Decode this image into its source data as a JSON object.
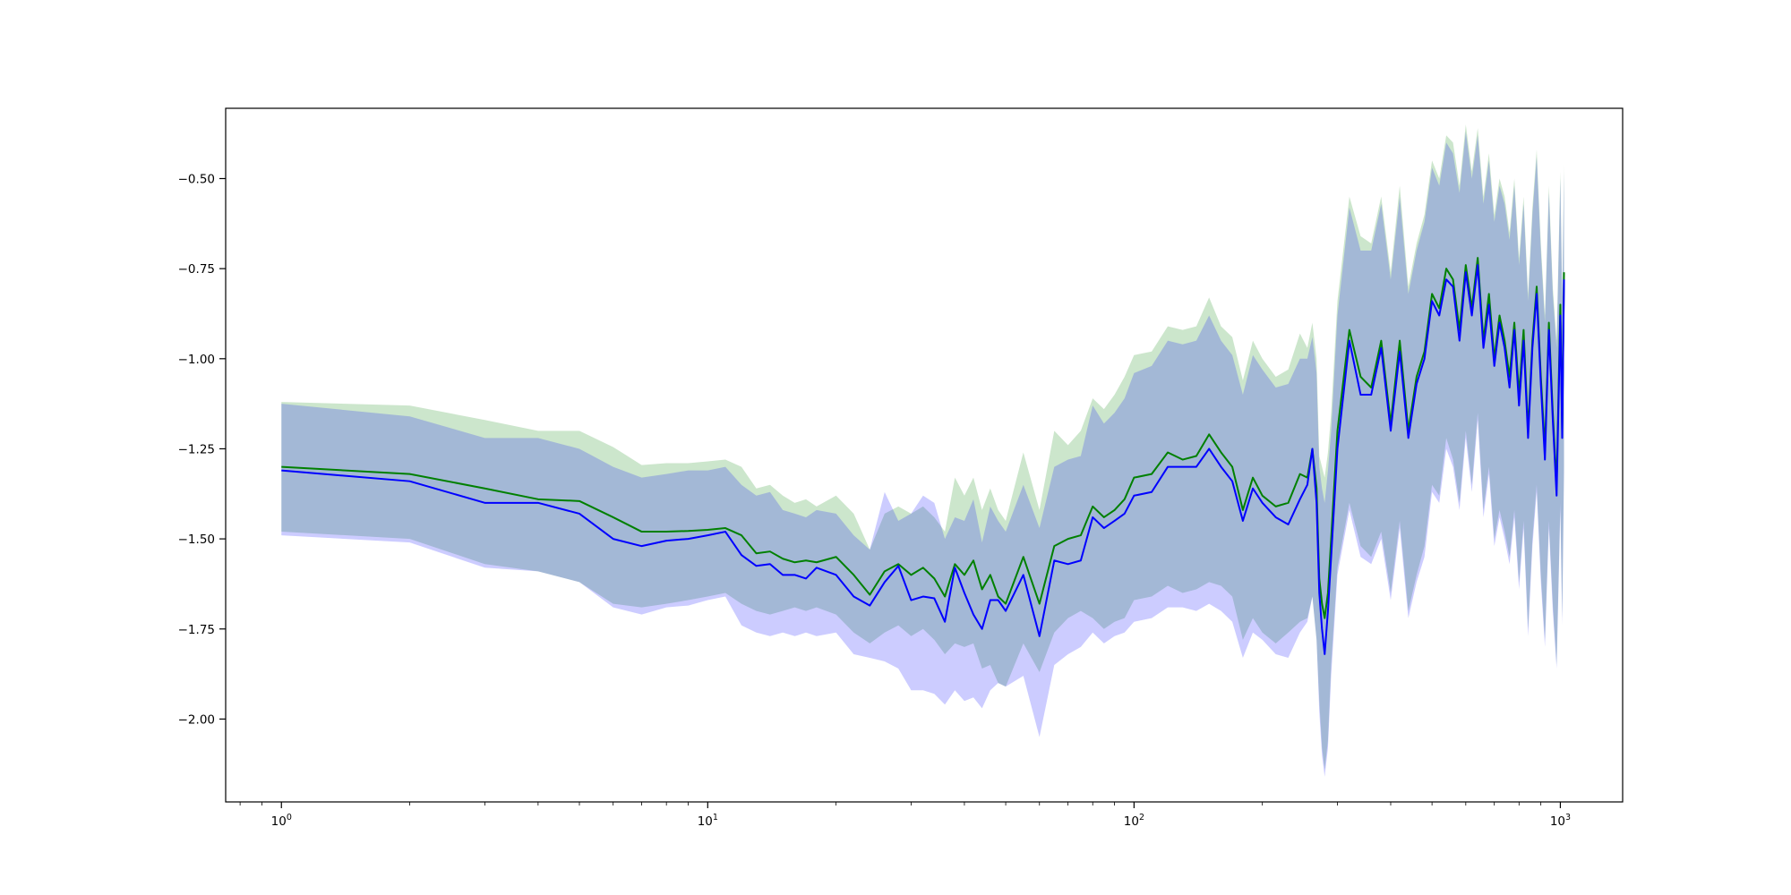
{
  "chart_data": {
    "type": "line",
    "title": "",
    "xlabel": "",
    "ylabel": "",
    "xscale": "log",
    "xlim": [
      0.74,
      1400
    ],
    "ylim": [
      -2.23,
      -0.305
    ],
    "grid": false,
    "legend": "none",
    "x_ticks": [
      {
        "value": 1,
        "base": "10",
        "exp": "0"
      },
      {
        "value": 10,
        "base": "10",
        "exp": "1"
      },
      {
        "value": 100,
        "base": "10",
        "exp": "2"
      },
      {
        "value": 1000,
        "base": "10",
        "exp": "3"
      }
    ],
    "y_ticks": [
      {
        "value": -0.5,
        "label": "−0.50"
      },
      {
        "value": -0.75,
        "label": "−0.75"
      },
      {
        "value": -1.0,
        "label": "−1.00"
      },
      {
        "value": -1.25,
        "label": "−1.25"
      },
      {
        "value": -1.5,
        "label": "−1.50"
      },
      {
        "value": -1.75,
        "label": "−1.75"
      },
      {
        "value": -2.0,
        "label": "−2.00"
      }
    ],
    "series": [
      {
        "color": "#008000",
        "band_color": "#008000",
        "band_opacity": 0.2,
        "x": [
          1,
          2,
          3,
          4,
          5,
          6,
          7,
          8,
          9,
          10,
          11,
          12,
          13,
          14,
          15,
          16,
          17,
          18,
          20,
          22,
          24,
          26,
          28,
          30,
          32,
          34,
          36,
          38,
          40,
          42,
          44,
          46,
          48,
          50,
          55,
          60,
          65,
          70,
          75,
          80,
          85,
          90,
          95,
          100,
          110,
          120,
          130,
          140,
          150,
          160,
          170,
          180,
          190,
          200,
          215,
          230,
          245,
          255,
          262,
          268,
          272,
          276,
          280,
          285,
          290,
          300,
          320,
          340,
          360,
          380,
          400,
          420,
          440,
          460,
          480,
          500,
          520,
          540,
          560,
          580,
          600,
          620,
          640,
          660,
          680,
          700,
          720,
          740,
          760,
          780,
          800,
          820,
          840,
          860,
          880,
          900,
          920,
          940,
          960,
          980,
          1000,
          1010,
          1020
        ],
        "mean": [
          -1.3,
          -1.32,
          -1.36,
          -1.39,
          -1.395,
          -1.44,
          -1.48,
          -1.48,
          -1.478,
          -1.475,
          -1.47,
          -1.49,
          -1.54,
          -1.535,
          -1.555,
          -1.565,
          -1.56,
          -1.565,
          -1.55,
          -1.6,
          -1.655,
          -1.59,
          -1.57,
          -1.6,
          -1.58,
          -1.61,
          -1.66,
          -1.57,
          -1.6,
          -1.56,
          -1.64,
          -1.6,
          -1.66,
          -1.68,
          -1.55,
          -1.68,
          -1.52,
          -1.5,
          -1.49,
          -1.41,
          -1.44,
          -1.42,
          -1.39,
          -1.33,
          -1.32,
          -1.26,
          -1.28,
          -1.27,
          -1.21,
          -1.26,
          -1.3,
          -1.42,
          -1.33,
          -1.38,
          -1.41,
          -1.4,
          -1.32,
          -1.33,
          -1.25,
          -1.36,
          -1.61,
          -1.68,
          -1.72,
          -1.65,
          -1.5,
          -1.2,
          -0.92,
          -1.05,
          -1.08,
          -0.95,
          -1.18,
          -0.95,
          -1.2,
          -1.05,
          -0.98,
          -0.82,
          -0.86,
          -0.75,
          -0.78,
          -0.92,
          -0.74,
          -0.86,
          -0.72,
          -0.95,
          -0.82,
          -1.0,
          -0.88,
          -0.95,
          -1.05,
          -0.9,
          -1.1,
          -0.92,
          -1.2,
          -0.95,
          -0.8,
          -1.05,
          -1.25,
          -0.9,
          -1.15,
          -1.35,
          -0.85,
          -1.2,
          -0.76
        ],
        "lower": [
          -1.48,
          -1.5,
          -1.57,
          -1.59,
          -1.62,
          -1.68,
          -1.69,
          -1.68,
          -1.67,
          -1.66,
          -1.65,
          -1.68,
          -1.7,
          -1.71,
          -1.7,
          -1.69,
          -1.7,
          -1.69,
          -1.71,
          -1.76,
          -1.79,
          -1.76,
          -1.74,
          -1.77,
          -1.75,
          -1.78,
          -1.82,
          -1.79,
          -1.8,
          -1.79,
          -1.86,
          -1.85,
          -1.9,
          -1.91,
          -1.79,
          -1.87,
          -1.76,
          -1.72,
          -1.7,
          -1.72,
          -1.75,
          -1.73,
          -1.72,
          -1.67,
          -1.66,
          -1.63,
          -1.65,
          -1.64,
          -1.62,
          -1.63,
          -1.66,
          -1.78,
          -1.72,
          -1.76,
          -1.79,
          -1.76,
          -1.73,
          -1.72,
          -1.66,
          -1.78,
          -1.95,
          -2.08,
          -2.14,
          -2.06,
          -1.85,
          -1.58,
          -1.4,
          -1.52,
          -1.55,
          -1.48,
          -1.65,
          -1.45,
          -1.7,
          -1.6,
          -1.52,
          -1.35,
          -1.38,
          -1.22,
          -1.28,
          -1.4,
          -1.2,
          -1.35,
          -1.15,
          -1.42,
          -1.3,
          -1.5,
          -1.42,
          -1.48,
          -1.55,
          -1.42,
          -1.62,
          -1.45,
          -1.75,
          -1.5,
          -1.35,
          -1.6,
          -1.78,
          -1.45,
          -1.68,
          -1.85,
          -1.4,
          -1.72,
          -1.3
        ],
        "upper": [
          -1.12,
          -1.13,
          -1.17,
          -1.2,
          -1.2,
          -1.245,
          -1.295,
          -1.29,
          -1.29,
          -1.285,
          -1.28,
          -1.3,
          -1.36,
          -1.35,
          -1.38,
          -1.4,
          -1.39,
          -1.41,
          -1.38,
          -1.43,
          -1.53,
          -1.43,
          -1.41,
          -1.43,
          -1.41,
          -1.44,
          -1.48,
          -1.33,
          -1.38,
          -1.33,
          -1.42,
          -1.36,
          -1.42,
          -1.45,
          -1.26,
          -1.42,
          -1.2,
          -1.24,
          -1.2,
          -1.11,
          -1.14,
          -1.1,
          -1.05,
          -0.99,
          -0.98,
          -0.91,
          -0.92,
          -0.91,
          -0.83,
          -0.91,
          -0.94,
          -1.06,
          -0.95,
          -1.0,
          -1.05,
          -1.03,
          -0.93,
          -0.97,
          -0.9,
          -1.0,
          -1.27,
          -1.3,
          -1.33,
          -1.26,
          -1.15,
          -0.84,
          -0.55,
          -0.66,
          -0.68,
          -0.55,
          -0.76,
          -0.52,
          -0.8,
          -0.68,
          -0.6,
          -0.45,
          -0.5,
          -0.38,
          -0.4,
          -0.52,
          -0.35,
          -0.48,
          -0.36,
          -0.55,
          -0.43,
          -0.6,
          -0.5,
          -0.55,
          -0.65,
          -0.5,
          -0.72,
          -0.55,
          -0.82,
          -0.58,
          -0.42,
          -0.68,
          -0.88,
          -0.52,
          -0.8,
          -0.95,
          -0.48,
          -0.83,
          -0.46
        ]
      },
      {
        "color": "#0000ff",
        "band_color": "#0000ff",
        "band_opacity": 0.2,
        "x": [
          1,
          2,
          3,
          4,
          5,
          6,
          7,
          8,
          9,
          10,
          11,
          12,
          13,
          14,
          15,
          16,
          17,
          18,
          20,
          22,
          24,
          26,
          28,
          30,
          32,
          34,
          36,
          38,
          40,
          42,
          44,
          46,
          48,
          50,
          55,
          60,
          65,
          70,
          75,
          80,
          85,
          90,
          95,
          100,
          110,
          120,
          130,
          140,
          150,
          160,
          170,
          180,
          190,
          200,
          215,
          230,
          245,
          255,
          262,
          268,
          272,
          276,
          280,
          285,
          290,
          300,
          320,
          340,
          360,
          380,
          400,
          420,
          440,
          460,
          480,
          500,
          520,
          540,
          560,
          580,
          600,
          620,
          640,
          660,
          680,
          700,
          720,
          740,
          760,
          780,
          800,
          820,
          840,
          860,
          880,
          900,
          920,
          940,
          960,
          980,
          1000,
          1010,
          1020
        ],
        "mean": [
          -1.31,
          -1.34,
          -1.4,
          -1.4,
          -1.43,
          -1.5,
          -1.52,
          -1.505,
          -1.5,
          -1.49,
          -1.48,
          -1.545,
          -1.575,
          -1.57,
          -1.6,
          -1.6,
          -1.61,
          -1.58,
          -1.6,
          -1.66,
          -1.685,
          -1.62,
          -1.575,
          -1.67,
          -1.66,
          -1.665,
          -1.73,
          -1.58,
          -1.65,
          -1.71,
          -1.75,
          -1.67,
          -1.67,
          -1.7,
          -1.6,
          -1.77,
          -1.56,
          -1.57,
          -1.56,
          -1.44,
          -1.47,
          -1.45,
          -1.43,
          -1.38,
          -1.37,
          -1.3,
          -1.3,
          -1.3,
          -1.25,
          -1.3,
          -1.34,
          -1.45,
          -1.36,
          -1.4,
          -1.44,
          -1.46,
          -1.39,
          -1.35,
          -1.25,
          -1.4,
          -1.65,
          -1.75,
          -1.82,
          -1.7,
          -1.55,
          -1.25,
          -0.95,
          -1.1,
          -1.1,
          -0.97,
          -1.2,
          -0.98,
          -1.22,
          -1.07,
          -1.0,
          -0.84,
          -0.88,
          -0.78,
          -0.8,
          -0.95,
          -0.76,
          -0.88,
          -0.74,
          -0.97,
          -0.85,
          -1.02,
          -0.9,
          -0.97,
          -1.08,
          -0.92,
          -1.13,
          -0.95,
          -1.22,
          -0.97,
          -0.82,
          -1.07,
          -1.28,
          -0.92,
          -1.17,
          -1.38,
          -0.88,
          -1.22,
          -0.78
        ],
        "lower": [
          -1.49,
          -1.51,
          -1.58,
          -1.59,
          -1.62,
          -1.69,
          -1.71,
          -1.69,
          -1.685,
          -1.67,
          -1.66,
          -1.74,
          -1.76,
          -1.77,
          -1.76,
          -1.77,
          -1.76,
          -1.77,
          -1.76,
          -1.82,
          -1.83,
          -1.84,
          -1.86,
          -1.92,
          -1.92,
          -1.93,
          -1.96,
          -1.92,
          -1.95,
          -1.94,
          -1.97,
          -1.92,
          -1.9,
          -1.91,
          -1.88,
          -2.05,
          -1.85,
          -1.82,
          -1.8,
          -1.76,
          -1.79,
          -1.77,
          -1.76,
          -1.73,
          -1.72,
          -1.69,
          -1.69,
          -1.7,
          -1.68,
          -1.7,
          -1.73,
          -1.83,
          -1.76,
          -1.78,
          -1.82,
          -1.83,
          -1.76,
          -1.73,
          -1.66,
          -1.78,
          -1.98,
          -2.1,
          -2.16,
          -2.08,
          -1.88,
          -1.6,
          -1.42,
          -1.55,
          -1.57,
          -1.5,
          -1.67,
          -1.47,
          -1.72,
          -1.62,
          -1.55,
          -1.37,
          -1.4,
          -1.25,
          -1.3,
          -1.42,
          -1.22,
          -1.37,
          -1.17,
          -1.44,
          -1.32,
          -1.52,
          -1.44,
          -1.5,
          -1.57,
          -1.44,
          -1.64,
          -1.47,
          -1.77,
          -1.52,
          -1.37,
          -1.62,
          -1.8,
          -1.47,
          -1.7,
          -1.86,
          -1.42,
          -1.74,
          -1.32
        ],
        "upper": [
          -1.125,
          -1.16,
          -1.22,
          -1.22,
          -1.25,
          -1.3,
          -1.33,
          -1.32,
          -1.31,
          -1.31,
          -1.3,
          -1.35,
          -1.38,
          -1.37,
          -1.42,
          -1.43,
          -1.44,
          -1.42,
          -1.43,
          -1.49,
          -1.53,
          -1.37,
          -1.45,
          -1.43,
          -1.38,
          -1.4,
          -1.5,
          -1.44,
          -1.45,
          -1.39,
          -1.51,
          -1.41,
          -1.45,
          -1.48,
          -1.35,
          -1.47,
          -1.3,
          -1.28,
          -1.27,
          -1.13,
          -1.18,
          -1.15,
          -1.11,
          -1.04,
          -1.02,
          -0.95,
          -0.96,
          -0.95,
          -0.88,
          -0.95,
          -0.99,
          -1.1,
          -0.99,
          -1.03,
          -1.08,
          -1.07,
          -1.0,
          -1.0,
          -0.94,
          -1.04,
          -1.3,
          -1.36,
          -1.4,
          -1.31,
          -1.2,
          -0.88,
          -0.58,
          -0.7,
          -0.7,
          -0.57,
          -0.78,
          -0.55,
          -0.82,
          -0.7,
          -0.62,
          -0.47,
          -0.52,
          -0.4,
          -0.43,
          -0.54,
          -0.37,
          -0.5,
          -0.38,
          -0.57,
          -0.45,
          -0.62,
          -0.52,
          -0.57,
          -0.67,
          -0.52,
          -0.74,
          -0.57,
          -0.84,
          -0.6,
          -0.44,
          -0.7,
          -0.9,
          -0.54,
          -0.82,
          -0.97,
          -0.5,
          -0.85,
          -0.48
        ]
      }
    ]
  }
}
